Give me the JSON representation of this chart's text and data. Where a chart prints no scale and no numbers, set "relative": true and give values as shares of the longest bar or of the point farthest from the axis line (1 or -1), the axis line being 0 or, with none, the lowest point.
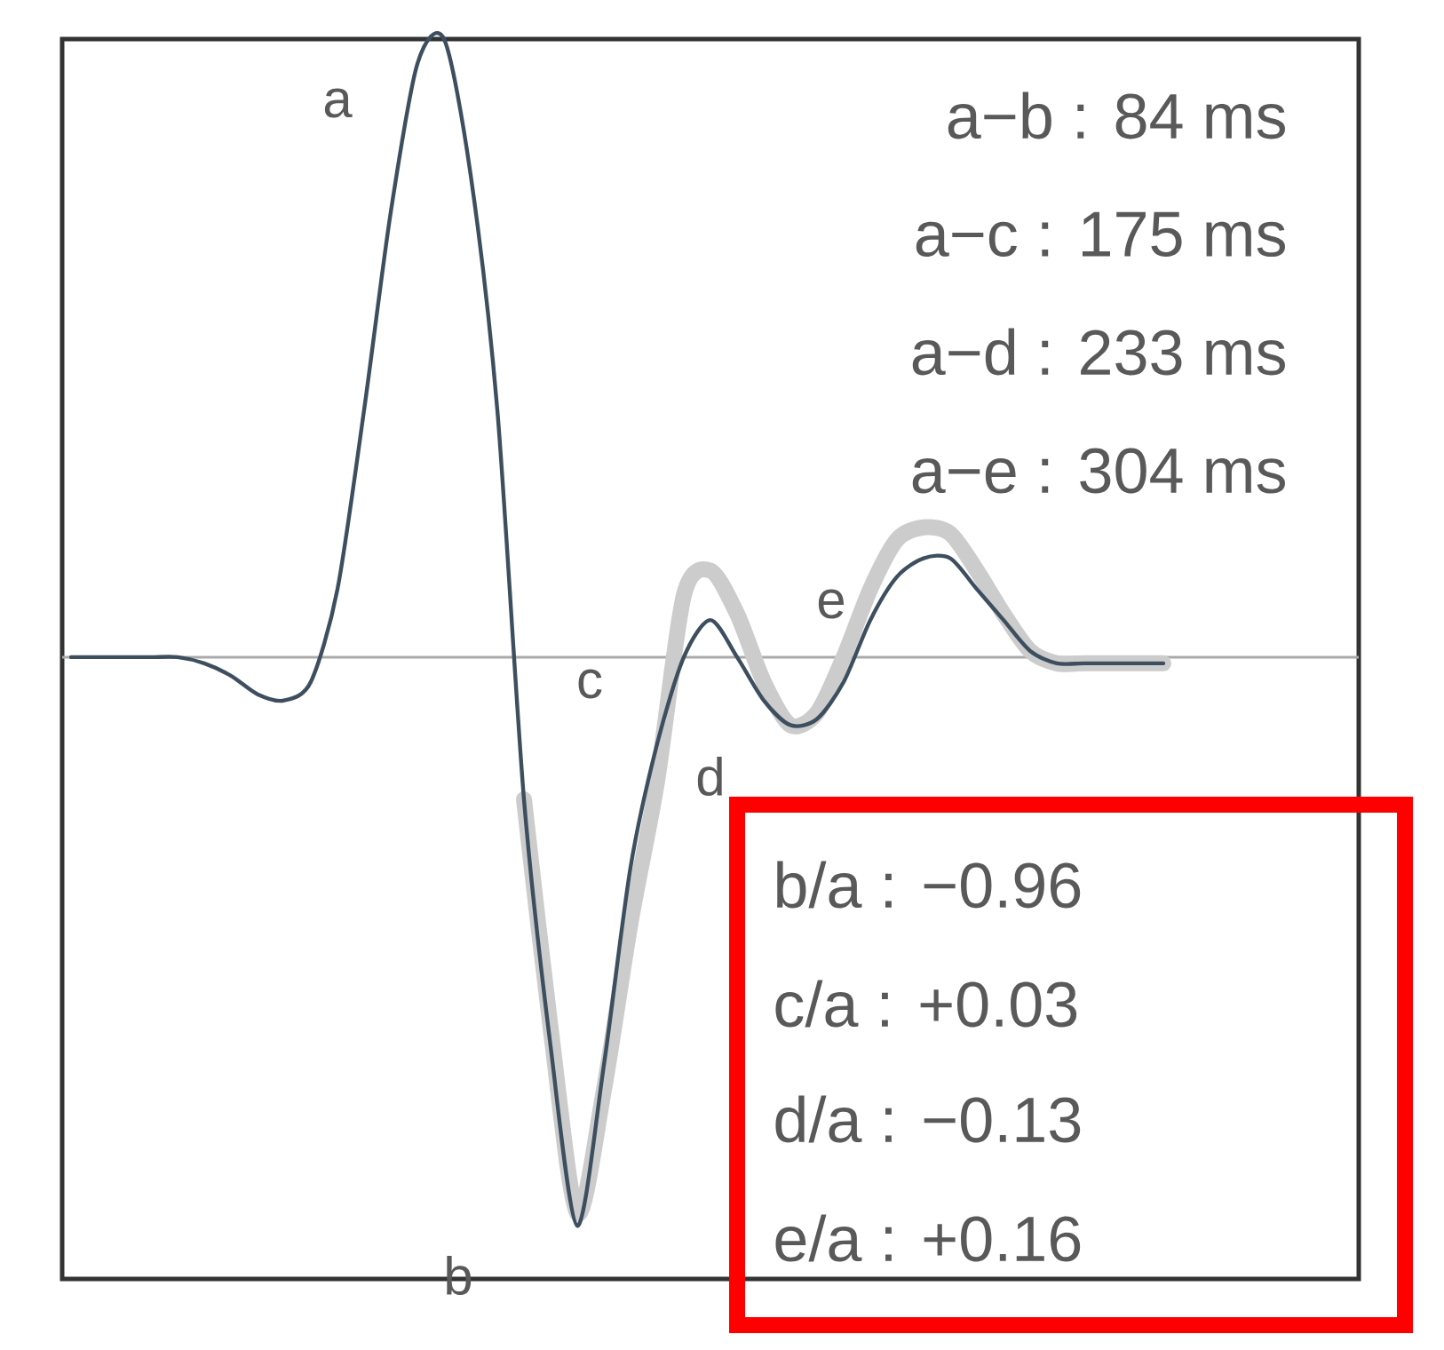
{
  "chart_data": {
    "type": "line",
    "relative": true,
    "categories": [
      null,
      null,
      null,
      null,
      null,
      null,
      null,
      null,
      null,
      null,
      null,
      null,
      null,
      null,
      null,
      null,
      null,
      null,
      null,
      null,
      null,
      null,
      null,
      null,
      null,
      null,
      null,
      null,
      null,
      null,
      null,
      null,
      null,
      null,
      null,
      null,
      null,
      null,
      null,
      null,
      null,
      null
    ],
    "series": [
      {
        "color": "#cccccc",
        "values": [
          null,
          null,
          null,
          null,
          null,
          null,
          null,
          null,
          null,
          null,
          null,
          null,
          null,
          null,
          null,
          null,
          null,
          -0.23,
          -0.6,
          -0.9,
          -0.7,
          -0.43,
          -0.2,
          0.1,
          0.14,
          0.07,
          -0.04,
          -0.11,
          -0.09,
          0,
          0.11,
          0.19,
          0.21,
          0.2,
          0.14,
          0.07,
          0.01,
          -0.01,
          -0.01,
          -0.01,
          -0.01,
          -0.01
        ]
      },
      {
        "color": "#3d4f5f",
        "values": [
          0,
          0,
          0,
          0,
          0,
          -0.01,
          -0.03,
          -0.06,
          -0.07,
          -0.04,
          0.11,
          0.4,
          0.72,
          0.96,
          1,
          0.78,
          0.4,
          -0.23,
          -0.63,
          -0.92,
          -0.66,
          -0.34,
          -0.14,
          0,
          0.06,
          0,
          -0.07,
          -0.11,
          -0.1,
          -0.04,
          0.06,
          0.13,
          0.16,
          0.16,
          0.11,
          0.06,
          0.01,
          -0.01,
          -0.01,
          -0.01,
          -0.01,
          -0.01
        ]
      }
    ],
    "ref_lines": [
      {
        "axis": "y",
        "value": 0,
        "color": "#aaaaaa"
      }
    ],
    "annotations": [
      "a",
      "b",
      "c",
      "d",
      "e",
      "a−b : 84 ms",
      "a−c : 175 ms",
      "a−d : 233 ms",
      "a−e : 304 ms",
      "b/a : −0.96",
      "c/a : +0.03",
      "d/a : −0.13",
      "e/a : +0.16"
    ]
  }
}
